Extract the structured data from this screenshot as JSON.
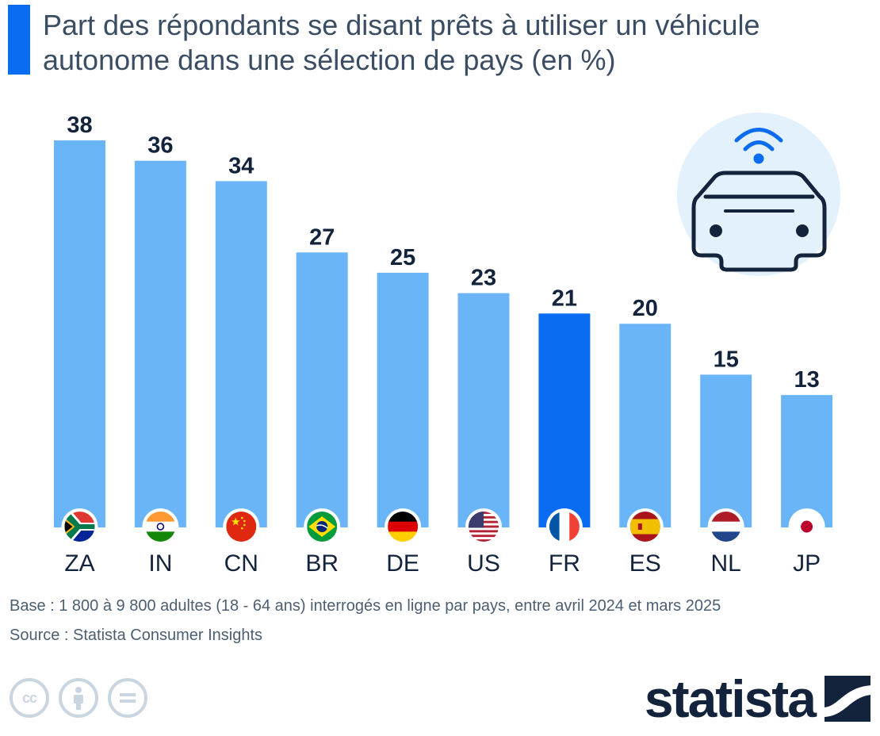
{
  "title": {
    "line1": "Part des répondants se disant prêts à utiliser un véhicule",
    "line2": "autonome dans une sélection de pays (en %)"
  },
  "chart_data": {
    "type": "bar",
    "unit": "%",
    "categories": [
      "ZA",
      "IN",
      "CN",
      "BR",
      "DE",
      "US",
      "FR",
      "ES",
      "NL",
      "JP"
    ],
    "values": [
      38,
      36,
      34,
      27,
      25,
      23,
      21,
      20,
      15,
      13
    ],
    "highlight": "FR",
    "ylim": [
      0,
      38
    ],
    "grid": false,
    "legend": "none",
    "xlabel": "",
    "ylabel": ""
  },
  "colors": {
    "bar": "#6ab5f8",
    "bar_highlight": "#0a6cf0",
    "label": "#14233c",
    "title_accent": "#0a6cf0"
  },
  "illustration": {
    "icon": "autonomous-car-icon"
  },
  "footer": {
    "base": "Base : 1 800 à 9 800 adultes (18 - 64 ans) interrogés en ligne par pays, entre avril 2024 et mars 2025",
    "source": "Source : Statista Consumer Insights",
    "license_icons": [
      "cc-icon",
      "attribution-icon",
      "no-derivatives-icon"
    ],
    "logo": "statista"
  }
}
